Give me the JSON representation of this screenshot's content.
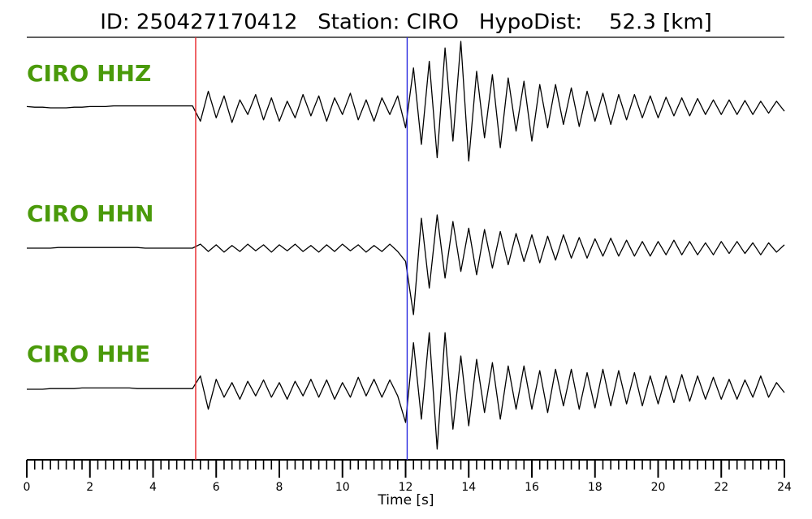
{
  "chart_data": {
    "type": "seismogram",
    "title": "ID: 250427170412   Station: CIRO   HypoDist:    52.3 [km]",
    "x_label": "Time [s]",
    "xlim": [
      0,
      24
    ],
    "xticks": [
      0,
      2,
      4,
      6,
      8,
      10,
      12,
      14,
      16,
      18,
      20,
      22,
      24
    ],
    "xminorticks": [
      0,
      0.25,
      0.5,
      0.75,
      1,
      1.25,
      1.5,
      1.75,
      2,
      2.25,
      2.5,
      2.75,
      3,
      3.25,
      3.5,
      3.75,
      4,
      4.25,
      4.5,
      4.75,
      5,
      5.25,
      5.5,
      5.75,
      6,
      6.25,
      6.5,
      6.75,
      7,
      7.25,
      7.5,
      7.75,
      8,
      8.25,
      8.5,
      8.75,
      9,
      9.25,
      9.5,
      9.75,
      10,
      10.25,
      10.5,
      10.75,
      11,
      11.25,
      11.5,
      11.75,
      12,
      12.25,
      12.5,
      12.75,
      13,
      13.25,
      13.5,
      13.75,
      14,
      14.25,
      14.5,
      14.75,
      15,
      15.25,
      15.5,
      15.75,
      16,
      16.25,
      16.5,
      16.75,
      17,
      17.25,
      17.5,
      17.75,
      18,
      18.25,
      18.5,
      18.75,
      19,
      19.25,
      19.5,
      19.75,
      20,
      20.25,
      20.5,
      20.75,
      21,
      21.25,
      21.5,
      21.75,
      22,
      22.25,
      22.5,
      22.75,
      23,
      23.25,
      23.5,
      23.75,
      24
    ],
    "markers": [
      {
        "x": 5.35,
        "color": "#e8262a"
      },
      {
        "x": 12.05,
        "color": "#2b2be0"
      }
    ],
    "x": [
      0,
      0.25,
      0.5,
      0.75,
      1,
      1.25,
      1.5,
      1.75,
      2,
      2.25,
      2.5,
      2.75,
      3,
      3.25,
      3.5,
      3.75,
      4,
      4.25,
      4.5,
      4.75,
      5,
      5.25,
      5.5,
      5.75,
      6,
      6.25,
      6.5,
      6.75,
      7,
      7.25,
      7.5,
      7.75,
      8,
      8.25,
      8.5,
      8.75,
      9,
      9.25,
      9.5,
      9.75,
      10,
      10.25,
      10.5,
      10.75,
      11,
      11.25,
      11.5,
      11.75,
      12,
      12.25,
      12.5,
      12.75,
      13,
      13.25,
      13.5,
      13.75,
      14,
      14.25,
      14.5,
      14.75,
      15,
      15.25,
      15.5,
      15.75,
      16,
      16.25,
      16.5,
      16.75,
      17,
      17.25,
      17.5,
      17.75,
      18,
      18.25,
      18.5,
      18.75,
      19,
      19.25,
      19.5,
      19.75,
      20,
      20.25,
      20.5,
      20.75,
      21,
      21.25,
      21.5,
      21.75,
      22,
      22.25,
      22.5,
      22.75,
      23,
      23.25,
      23.5,
      23.75,
      24
    ],
    "label_color": "#4a9a0a",
    "series": [
      {
        "name": "CIRO HHZ",
        "color": "#000000",
        "values": [
          0.02,
          0.01,
          0.01,
          0,
          0,
          0,
          0.01,
          0.01,
          0.02,
          0.02,
          0.02,
          0.03,
          0.03,
          0.03,
          0.03,
          0.03,
          0.03,
          0.03,
          0.03,
          0.03,
          0.03,
          0.03,
          -0.2,
          0.25,
          -0.15,
          0.18,
          -0.22,
          0.12,
          -0.1,
          0.2,
          -0.18,
          0.15,
          -0.2,
          0.1,
          -0.15,
          0.2,
          -0.12,
          0.18,
          -0.2,
          0.15,
          -0.1,
          0.22,
          -0.18,
          0.12,
          -0.2,
          0.15,
          -0.1,
          0.18,
          -0.3,
          0.6,
          -0.55,
          0.7,
          -0.75,
          0.9,
          -0.5,
          1.0,
          -0.8,
          0.55,
          -0.45,
          0.5,
          -0.6,
          0.45,
          -0.35,
          0.4,
          -0.5,
          0.35,
          -0.3,
          0.35,
          -0.25,
          0.3,
          -0.28,
          0.25,
          -0.2,
          0.22,
          -0.25,
          0.2,
          -0.18,
          0.2,
          -0.15,
          0.18,
          -0.15,
          0.16,
          -0.12,
          0.15,
          -0.12,
          0.14,
          -0.1,
          0.12,
          -0.1,
          0.12,
          -0.1,
          0.11,
          -0.1,
          0.1,
          -0.08,
          0.1,
          -0.05
        ]
      },
      {
        "name": "CIRO HHN",
        "color": "#000000",
        "values": [
          0,
          0,
          0,
          0,
          0.01,
          0.01,
          0.01,
          0.01,
          0.01,
          0.01,
          0.01,
          0.01,
          0.01,
          0.01,
          0.01,
          0,
          0,
          0,
          0,
          0,
          0,
          0,
          0.06,
          -0.05,
          0.05,
          -0.06,
          0.04,
          -0.05,
          0.06,
          -0.04,
          0.05,
          -0.06,
          0.05,
          -0.04,
          0.06,
          -0.05,
          0.04,
          -0.06,
          0.05,
          -0.05,
          0.06,
          -0.04,
          0.05,
          -0.06,
          0.04,
          -0.05,
          0.06,
          -0.05,
          -0.2,
          -1.0,
          0.45,
          -0.6,
          0.5,
          -0.45,
          0.4,
          -0.35,
          0.3,
          -0.4,
          0.28,
          -0.3,
          0.25,
          -0.25,
          0.22,
          -0.2,
          0.2,
          -0.22,
          0.18,
          -0.18,
          0.2,
          -0.15,
          0.16,
          -0.15,
          0.14,
          -0.12,
          0.15,
          -0.12,
          0.12,
          -0.12,
          0.1,
          -0.12,
          0.1,
          -0.1,
          0.12,
          -0.1,
          0.1,
          -0.1,
          0.08,
          -0.1,
          0.1,
          -0.08,
          0.1,
          -0.08,
          0.08,
          -0.1,
          0.08,
          -0.06,
          0.05
        ]
      },
      {
        "name": "CIRO HHE",
        "color": "#000000",
        "values": [
          0,
          0,
          0,
          0.01,
          0.01,
          0.01,
          0.01,
          0.02,
          0.02,
          0.02,
          0.02,
          0.02,
          0.02,
          0.02,
          0.01,
          0.01,
          0.01,
          0.01,
          0.01,
          0.01,
          0.01,
          0.01,
          0.2,
          -0.3,
          0.15,
          -0.12,
          0.1,
          -0.15,
          0.12,
          -0.1,
          0.14,
          -0.12,
          0.1,
          -0.15,
          0.12,
          -0.1,
          0.15,
          -0.12,
          0.14,
          -0.15,
          0.1,
          -0.12,
          0.18,
          -0.1,
          0.15,
          -0.12,
          0.14,
          -0.1,
          -0.5,
          0.7,
          -0.45,
          0.85,
          -0.9,
          0.85,
          -0.6,
          0.5,
          -0.55,
          0.45,
          -0.35,
          0.4,
          -0.45,
          0.35,
          -0.3,
          0.35,
          -0.3,
          0.28,
          -0.35,
          0.3,
          -0.25,
          0.3,
          -0.3,
          0.25,
          -0.28,
          0.3,
          -0.25,
          0.28,
          -0.22,
          0.25,
          -0.25,
          0.2,
          -0.22,
          0.2,
          -0.2,
          0.22,
          -0.18,
          0.2,
          -0.15,
          0.18,
          -0.15,
          0.15,
          -0.15,
          0.14,
          -0.12,
          0.2,
          -0.12,
          0.1,
          -0.05
        ]
      }
    ]
  }
}
